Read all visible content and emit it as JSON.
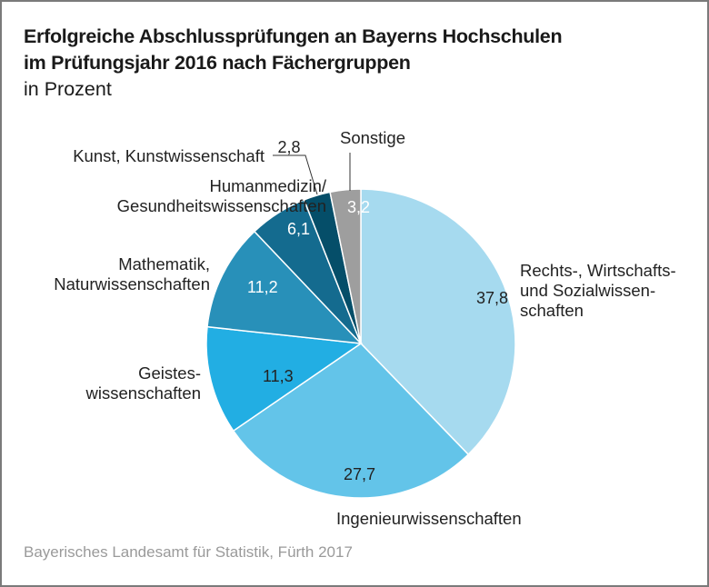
{
  "chart_data": {
    "type": "pie",
    "title": "Erfolgreiche Abschlussprüfungen an Bayerns Hochschulen im Prüfungsjahr 2016 nach Fächergruppen",
    "title_lines": [
      "Erfolgreiche Abschlussprüfungen an Bayerns Hochschulen",
      "im Prüfungsjahr 2016 nach Fächergruppen"
    ],
    "subtitle": "in Prozent",
    "source": "Bayerisches Landesamt für Statistik, Fürth 2017",
    "direction": "clockwise from top",
    "slices": [
      {
        "label": "Rechts-, Wirtschafts- und Sozialwissen- schaften",
        "label_lines": [
          "Rechts-, Wirtschafts-",
          "und Sozialwissen-",
          "schaften"
        ],
        "value": 37.8,
        "value_text": "37,8",
        "color": "#a6daef",
        "value_color": "#222222"
      },
      {
        "label": "Ingenieurwissenschaften",
        "label_lines": [
          "Ingenieurwissenschaften"
        ],
        "value": 27.7,
        "value_text": "27,7",
        "color": "#63c4e9",
        "value_color": "#222222"
      },
      {
        "label": "Geistes- wissenschaften",
        "label_lines": [
          "Geistes-",
          "wissenschaften"
        ],
        "value": 11.3,
        "value_text": "11,3",
        "color": "#22aee3",
        "value_color": "#222222"
      },
      {
        "label": "Mathematik, Naturwissenschaften",
        "label_lines": [
          "Mathematik,",
          "Naturwissenschaften"
        ],
        "value": 11.2,
        "value_text": "11,2",
        "color": "#2890b9",
        "value_color": "#ffffff"
      },
      {
        "label": "Humanmedizin/ Gesundheitswissenschaften",
        "label_lines": [
          "Humanmedizin/",
          "Gesundheitswissenschaften"
        ],
        "value": 6.1,
        "value_text": "6,1",
        "color": "#146b8f",
        "value_color": "#ffffff"
      },
      {
        "label": "Kunst, Kunstwissenschaft",
        "label_lines": [
          "Kunst, Kunstwissenschaft"
        ],
        "value": 2.8,
        "value_text": "2,8",
        "color": "#054e69",
        "value_color": "#222222"
      },
      {
        "label": "Sonstige",
        "label_lines": [
          "Sonstige"
        ],
        "value": 3.2,
        "value_text": "3,2",
        "color": "#9e9e9e",
        "value_color": "#ffffff"
      }
    ]
  }
}
